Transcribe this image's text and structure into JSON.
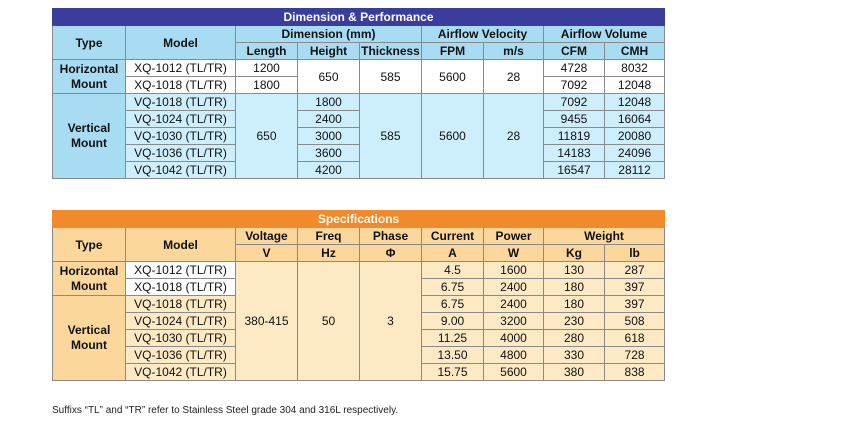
{
  "performance": {
    "title": "Dimension & Performance",
    "headers": {
      "type": "Type",
      "model": "Model",
      "dimension": "Dimension (mm)",
      "length": "Length",
      "height": "Height",
      "thickness": "Thickness",
      "airflow_velocity": "Airflow Velocity",
      "fpm": "FPM",
      "ms": "m/s",
      "airflow_volume": "Airflow Volume",
      "cfm": "CFM",
      "cmh": "CMH"
    },
    "groups": [
      {
        "type": "Horizontal Mount",
        "shared": {
          "height": "650",
          "thickness": "585",
          "fpm": "5600",
          "ms": "28"
        },
        "rows": [
          {
            "model": "XQ-1012 (TL/TR)",
            "length": "1200",
            "cfm": "4728",
            "cmh": "8032"
          },
          {
            "model": "XQ-1018 (TL/TR)",
            "length": "1800",
            "cfm": "7092",
            "cmh": "12048"
          }
        ]
      },
      {
        "type": "Vertical Mount",
        "shared": {
          "length": "650",
          "thickness": "585",
          "fpm": "5600",
          "ms": "28"
        },
        "rows": [
          {
            "model": "VQ-1018 (TL/TR)",
            "height": "1800",
            "cfm": "7092",
            "cmh": "12048"
          },
          {
            "model": "VQ-1024 (TL/TR)",
            "height": "2400",
            "cfm": "9455",
            "cmh": "16064"
          },
          {
            "model": "VQ-1030 (TL/TR)",
            "height": "3000",
            "cfm": "11819",
            "cmh": "20080"
          },
          {
            "model": "VQ-1036 (TL/TR)",
            "height": "3600",
            "cfm": "14183",
            "cmh": "24096"
          },
          {
            "model": "VQ-1042 (TL/TR)",
            "height": "4200",
            "cfm": "16547",
            "cmh": "28112"
          }
        ]
      }
    ]
  },
  "specifications": {
    "title": "Specifications",
    "headers": {
      "type": "Type",
      "model": "Model",
      "voltage": "Voltage",
      "freq": "Freq",
      "phase": "Phase",
      "current": "Current",
      "power": "Power",
      "weight": "Weight",
      "voltage_unit": "V",
      "freq_unit": "Hz",
      "phase_unit": "Φ",
      "current_unit": "A",
      "power_unit": "W",
      "kg": "Kg",
      "lb": "lb"
    },
    "shared": {
      "voltage": "380-415",
      "freq": "50",
      "phase": "3"
    },
    "groups": [
      {
        "type": "Horizontal Mount",
        "rows": [
          {
            "model": "XQ-1012 (TL/TR)",
            "current": "4.5",
            "power": "1600",
            "kg": "130",
            "lb": "287"
          },
          {
            "model": "XQ-1018 (TL/TR)",
            "current": "6.75",
            "power": "2400",
            "kg": "180",
            "lb": "397"
          }
        ]
      },
      {
        "type": "Vertical Mount",
        "rows": [
          {
            "model": "VQ-1018 (TL/TR)",
            "current": "6.75",
            "power": "2400",
            "kg": "180",
            "lb": "397"
          },
          {
            "model": "VQ-1024 (TL/TR)",
            "current": "9.00",
            "power": "3200",
            "kg": "230",
            "lb": "508"
          },
          {
            "model": "VQ-1030 (TL/TR)",
            "current": "11.25",
            "power": "4000",
            "kg": "280",
            "lb": "618"
          },
          {
            "model": "VQ-1036 (TL/TR)",
            "current": "13.50",
            "power": "4800",
            "kg": "330",
            "lb": "728"
          },
          {
            "model": "VQ-1042 (TL/TR)",
            "current": "15.75",
            "power": "5600",
            "kg": "380",
            "lb": "838"
          }
        ]
      }
    ]
  },
  "footnote": "Suffixs “TL” and “TR” refer to Stainless Steel grade 304 and 316L respectively."
}
